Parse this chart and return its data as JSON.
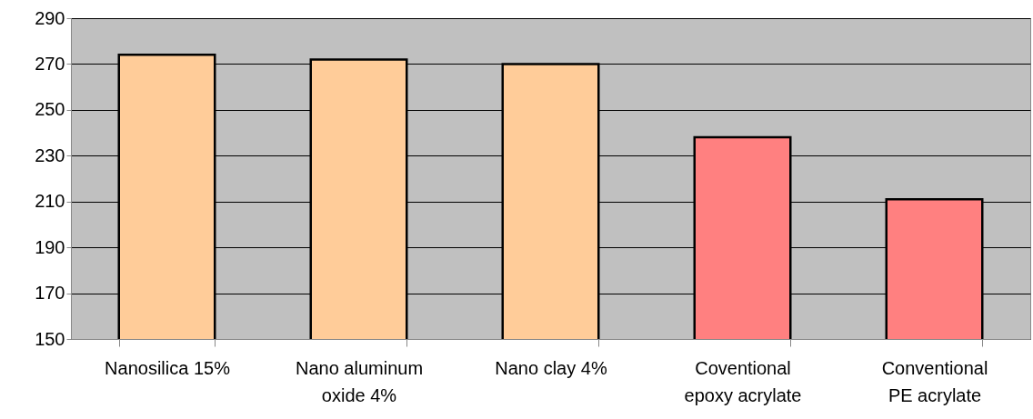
{
  "chart_data": {
    "type": "bar",
    "categories": [
      "Nanosilica 15%",
      "Nano aluminum oxide 4%",
      "Nano clay 4%",
      "Coventional epoxy acrylate",
      "Conventional PE acrylate"
    ],
    "values": [
      274,
      272,
      270,
      238,
      211
    ],
    "colors": [
      "#ffcc99",
      "#ffcc99",
      "#ffcc99",
      "#ff8080",
      "#ff8080"
    ],
    "ylim": [
      150,
      290
    ],
    "yticks": [
      150,
      170,
      190,
      210,
      230,
      250,
      270,
      290
    ],
    "grid": "y"
  }
}
